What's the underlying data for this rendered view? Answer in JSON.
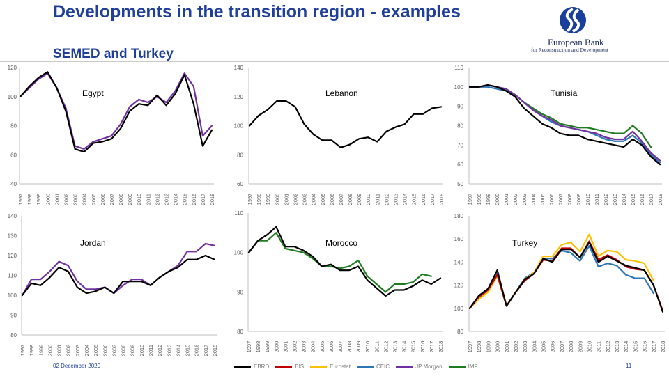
{
  "slide": {
    "title": "Developments in the transition region - examples",
    "subtitle": "SEMED and Turkey",
    "date": "02 December 2020",
    "page_number": "11"
  },
  "logo": {
    "line1": "European Bank",
    "line2": "for Reconstruction and Development",
    "color": "#1a3e9c"
  },
  "colors": {
    "EBRD": "#000000",
    "BIS": "#c00000",
    "Eurostat": "#ffc000",
    "CEIC": "#2e75b6",
    "JP Morgan": "#7030a0",
    "IMF": "#1e7b1e"
  },
  "legend": [
    "EBRD",
    "BIS",
    "Eurostat",
    "CEIC",
    "JP Morgan",
    "IMF"
  ],
  "chart_data": [
    {
      "type": "line",
      "label": "Egypt",
      "x": [
        "1997",
        "1998",
        "1999",
        "2000",
        "2001",
        "2002",
        "2003",
        "2004",
        "2005",
        "2006",
        "2007",
        "2008",
        "2009",
        "2010",
        "2011",
        "2012",
        "2013",
        "2014",
        "2015",
        "2016",
        "2017",
        "2018"
      ],
      "yticks": [
        40,
        60,
        80,
        100,
        120
      ],
      "ylim": [
        40,
        120
      ],
      "grid": false,
      "series": [
        {
          "name": "EBRD",
          "values": [
            100,
            107,
            113,
            117,
            106,
            90,
            64,
            62,
            68,
            69,
            71,
            78,
            90,
            95,
            94,
            101,
            94,
            102,
            115,
            95,
            66,
            77
          ]
        },
        {
          "name": "JP Morgan",
          "values": [
            100,
            106,
            112,
            116,
            106,
            92,
            66,
            64,
            69,
            71,
            73,
            81,
            93,
            98,
            96,
            100,
            96,
            104,
            116,
            107,
            73,
            80
          ]
        }
      ]
    },
    {
      "type": "line",
      "label": "Lebanon",
      "x": [
        "1997",
        "1998",
        "1999",
        "2000",
        "2001",
        "2002",
        "2003",
        "2004",
        "2005",
        "2006",
        "2007",
        "2008",
        "2009",
        "2010",
        "2011",
        "2012",
        "2013",
        "2014",
        "2015",
        "2016",
        "2017",
        "2018"
      ],
      "yticks": [
        60,
        80,
        100,
        120,
        140
      ],
      "ylim": [
        60,
        140
      ],
      "grid": false,
      "series": [
        {
          "name": "EBRD",
          "values": [
            100,
            107,
            111,
            117,
            117,
            113,
            101,
            94,
            90,
            90,
            85,
            87,
            91,
            92,
            89,
            96,
            99,
            101,
            108,
            108,
            112,
            113
          ]
        }
      ]
    },
    {
      "type": "line",
      "label": "Tunisia",
      "x": [
        "1997",
        "1998",
        "1999",
        "2000",
        "2001",
        "2002",
        "2003",
        "2004",
        "2005",
        "2006",
        "2007",
        "2008",
        "2009",
        "2010",
        "2011",
        "2012",
        "2013",
        "2014",
        "2015",
        "2016",
        "2017",
        "2018"
      ],
      "yticks": [
        50,
        60,
        70,
        80,
        90,
        100,
        110
      ],
      "ylim": [
        50,
        110
      ],
      "grid": false,
      "series": [
        {
          "name": "EBRD",
          "values": [
            100,
            100,
            101,
            100,
            98,
            95,
            89,
            85,
            81,
            79,
            76,
            75,
            75,
            73,
            72,
            71,
            70,
            69,
            73,
            70,
            64,
            60
          ]
        },
        {
          "name": "IMF",
          "values": [
            100,
            100,
            101,
            100,
            99,
            96,
            92,
            89,
            86,
            84,
            81,
            80,
            79,
            79,
            78,
            77,
            76,
            76,
            80,
            76,
            69,
            null
          ]
        },
        {
          "name": "JP Morgan",
          "values": [
            100,
            100,
            101,
            100,
            99,
            96,
            92,
            88,
            85,
            83,
            80,
            79,
            78,
            77,
            76,
            74,
            73,
            73,
            77,
            72,
            66,
            62
          ]
        },
        {
          "name": "CEIC",
          "values": [
            100,
            100,
            100,
            99,
            98,
            96,
            92,
            88,
            85,
            82,
            80,
            79,
            78,
            77,
            75,
            73,
            72,
            72,
            75,
            71,
            65,
            61
          ]
        }
      ]
    },
    {
      "type": "line",
      "label": "Jordan",
      "x": [
        "1997",
        "1998",
        "1999",
        "2000",
        "2001",
        "2002",
        "2003",
        "2004",
        "2005",
        "2006",
        "2007",
        "2008",
        "2009",
        "2010",
        "2011",
        "2012",
        "2013",
        "2014",
        "2015",
        "2016",
        "2017",
        "2018"
      ],
      "yticks": [
        80,
        90,
        100,
        110,
        120,
        130,
        140
      ],
      "ylim": [
        80,
        140
      ],
      "grid": false,
      "series": [
        {
          "name": "EBRD",
          "values": [
            100,
            106,
            105,
            109,
            114,
            112,
            104,
            101,
            102,
            104,
            101,
            107,
            107,
            107,
            105,
            109,
            112,
            114,
            118,
            118,
            120,
            118
          ]
        },
        {
          "name": "JP Morgan",
          "values": [
            100,
            108,
            108,
            112,
            117,
            115,
            107,
            103,
            103,
            104,
            101,
            105,
            108,
            108,
            105,
            109,
            112,
            115,
            122,
            122,
            126,
            125
          ]
        }
      ]
    },
    {
      "type": "line",
      "label": "Morocco",
      "x": [
        "1997",
        "1998",
        "1999",
        "2000",
        "2001",
        "2002",
        "2003",
        "2004",
        "2005",
        "2006",
        "2007",
        "2008",
        "2009",
        "2010",
        "2011",
        "2012",
        "2013",
        "2014",
        "2015",
        "2016",
        "2017",
        "2018"
      ],
      "yticks": [
        80,
        90,
        100,
        110
      ],
      "ylim": [
        80,
        110
      ],
      "grid": false,
      "series": [
        {
          "name": "EBRD",
          "values": [
            100,
            103,
            104.5,
            106.5,
            101.5,
            101.5,
            100.5,
            99,
            96.5,
            97,
            95.5,
            95.5,
            96.5,
            93,
            91,
            89,
            90.5,
            90.5,
            91.5,
            93,
            92,
            93.5
          ]
        },
        {
          "name": "IMF",
          "values": [
            100,
            103,
            103,
            105,
            101,
            100.5,
            100,
            98.5,
            96.5,
            96.5,
            96,
            96.5,
            98,
            94,
            92,
            90,
            92,
            92,
            92.5,
            94.5,
            94,
            null
          ]
        }
      ]
    },
    {
      "type": "line",
      "label": "Turkey",
      "x": [
        "1997",
        "1998",
        "1999",
        "2000",
        "2001",
        "2002",
        "2003",
        "2004",
        "2005",
        "2006",
        "2007",
        "2008",
        "2009",
        "2010",
        "2011",
        "2012",
        "2013",
        "2014",
        "2015",
        "2016",
        "2017",
        "2018"
      ],
      "yticks": [
        80,
        100,
        120,
        140,
        160,
        180
      ],
      "ylim": [
        80,
        180
      ],
      "grid": false,
      "series": [
        {
          "name": "EBRD",
          "values": [
            100,
            111,
            117,
            133,
            102,
            114,
            125,
            130,
            143,
            140,
            151,
            151,
            144,
            157,
            140,
            145,
            141,
            137,
            135,
            133,
            120,
            97
          ]
        },
        {
          "name": "BIS",
          "values": [
            100,
            110,
            116,
            129,
            102,
            114,
            124,
            130,
            142,
            141,
            152,
            152,
            144,
            158,
            142,
            146,
            142,
            136,
            134,
            133,
            120,
            98
          ]
        },
        {
          "name": "Eurostat",
          "values": [
            100,
            108,
            114,
            128,
            102,
            114,
            125,
            131,
            145,
            145,
            155,
            157,
            149,
            164,
            145,
            150,
            149,
            142,
            141,
            139,
            124,
            null
          ]
        },
        {
          "name": "CEIC",
          "values": [
            100,
            109,
            116,
            130,
            102,
            114,
            126,
            131,
            143,
            143,
            150,
            148,
            141,
            154,
            136,
            139,
            137,
            129,
            126,
            126,
            113,
            null
          ]
        }
      ]
    }
  ]
}
